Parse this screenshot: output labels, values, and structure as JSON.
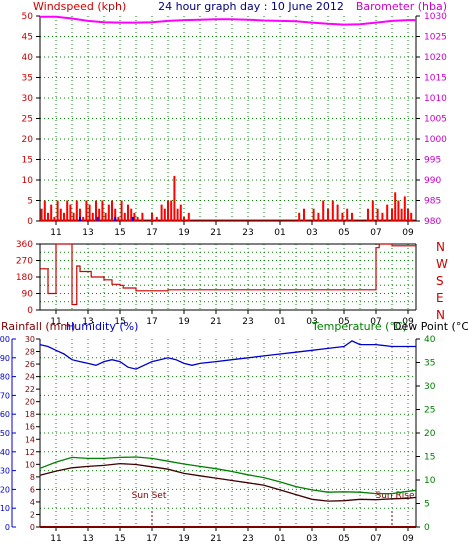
{
  "header": {
    "left_label": "Windspeed (kph)",
    "title": "24 hour graph day : 10 June 2012",
    "right_label": "Barometer (hba)"
  },
  "colors": {
    "wind": "#ff0000",
    "gust": "#0000ff",
    "barometer": "#ff00ff",
    "direction": "#cc0000",
    "humidity": "#0000cc",
    "temperature": "#008000",
    "dewpoint": "#400000",
    "rain": "#800000",
    "grid": "#008000",
    "axis_left": "#cc0000",
    "axis_right": "#cc00cc",
    "axis_blue": "#0000cc",
    "axis_green": "#008000"
  },
  "time_ticks": [
    "11",
    "13",
    "15",
    "17",
    "19",
    "21",
    "23",
    "01",
    "03",
    "05",
    "07",
    "09"
  ],
  "chart_data": [
    {
      "type": "bar",
      "name": "windspeed-barometer",
      "title": "24 hour graph day : 10 June 2012",
      "ylabel": "Windspeed (kph)",
      "ylabel_right": "Barometer (hba)",
      "ylim": [
        0,
        50
      ],
      "ylim_right": [
        980,
        1030
      ],
      "yticks": [
        0,
        5,
        10,
        15,
        20,
        25,
        30,
        35,
        40,
        45,
        50
      ],
      "yticks_right": [
        980,
        985,
        990,
        995,
        1000,
        1005,
        1010,
        1015,
        1020,
        1025,
        1030
      ],
      "xlim": [
        10,
        33.5
      ],
      "grid": true,
      "wind_bars": [
        [
          10.1,
          3
        ],
        [
          10.3,
          5
        ],
        [
          10.5,
          2
        ],
        [
          10.7,
          4
        ],
        [
          10.9,
          1
        ],
        [
          11.1,
          5
        ],
        [
          11.3,
          3
        ],
        [
          11.5,
          2
        ],
        [
          11.7,
          5
        ],
        [
          11.9,
          4
        ],
        [
          12.1,
          2
        ],
        [
          12.3,
          5
        ],
        [
          12.5,
          3
        ],
        [
          12.7,
          1
        ],
        [
          12.9,
          5
        ],
        [
          13.1,
          4
        ],
        [
          13.3,
          2
        ],
        [
          13.5,
          5
        ],
        [
          13.7,
          3
        ],
        [
          13.9,
          5
        ],
        [
          14.1,
          2
        ],
        [
          14.3,
          4
        ],
        [
          14.5,
          5
        ],
        [
          14.7,
          3
        ],
        [
          14.9,
          1
        ],
        [
          15.1,
          5
        ],
        [
          15.3,
          2
        ],
        [
          15.5,
          4
        ],
        [
          15.7,
          3
        ],
        [
          15.9,
          2
        ],
        [
          16.1,
          1
        ],
        [
          16.4,
          2
        ],
        [
          17.0,
          2
        ],
        [
          17.3,
          1
        ],
        [
          17.6,
          4
        ],
        [
          17.8,
          3
        ],
        [
          18.0,
          5
        ],
        [
          18.2,
          5
        ],
        [
          18.4,
          11
        ],
        [
          18.6,
          3
        ],
        [
          18.8,
          4
        ],
        [
          19.0,
          1
        ],
        [
          19.3,
          2
        ],
        [
          26.2,
          2
        ],
        [
          26.5,
          3
        ],
        [
          27.1,
          3
        ],
        [
          27.4,
          2
        ],
        [
          27.7,
          5
        ],
        [
          28.0,
          3
        ],
        [
          28.3,
          5
        ],
        [
          28.6,
          4
        ],
        [
          28.9,
          2
        ],
        [
          29.2,
          3
        ],
        [
          29.5,
          2
        ],
        [
          30.5,
          3
        ],
        [
          30.8,
          5
        ],
        [
          31.1,
          3
        ],
        [
          31.4,
          2
        ],
        [
          31.7,
          4
        ],
        [
          32.0,
          3
        ],
        [
          32.2,
          7
        ],
        [
          32.4,
          5
        ],
        [
          32.6,
          3
        ],
        [
          32.8,
          6
        ],
        [
          33.0,
          3
        ],
        [
          33.2,
          2
        ]
      ],
      "gust_bars": [
        [
          12.5,
          1
        ],
        [
          13.6,
          1
        ],
        [
          14.7,
          1
        ],
        [
          15.8,
          1
        ]
      ],
      "barometer": [
        [
          10,
          1029.8
        ],
        [
          11,
          1029.8
        ],
        [
          12,
          1029.4
        ],
        [
          13,
          1028.8
        ],
        [
          14,
          1028.5
        ],
        [
          15,
          1028.4
        ],
        [
          16,
          1028.4
        ],
        [
          17,
          1028.5
        ],
        [
          18,
          1028.8
        ],
        [
          19,
          1029.0
        ],
        [
          20,
          1029.1
        ],
        [
          21,
          1029.2
        ],
        [
          22,
          1029.2
        ],
        [
          23,
          1029.1
        ],
        [
          24,
          1028.9
        ],
        [
          25,
          1028.8
        ],
        [
          26,
          1028.7
        ],
        [
          27,
          1028.4
        ],
        [
          28,
          1028.1
        ],
        [
          29,
          1027.9
        ],
        [
          30,
          1028.0
        ],
        [
          31,
          1028.4
        ],
        [
          32,
          1028.8
        ],
        [
          33,
          1029.0
        ],
        [
          33.5,
          1029.0
        ]
      ]
    },
    {
      "type": "line",
      "name": "wind-direction",
      "ylim": [
        0,
        360
      ],
      "yticks": [
        0,
        90,
        180,
        270,
        360
      ],
      "compass": [
        "N",
        "W",
        "S",
        "E",
        "N"
      ],
      "xlim": [
        10,
        33.5
      ],
      "grid": true,
      "points": [
        [
          10,
          225
        ],
        [
          10.5,
          225
        ],
        [
          10.5,
          90
        ],
        [
          11.0,
          90
        ],
        [
          11.0,
          360
        ],
        [
          12.0,
          360
        ],
        [
          12.0,
          30
        ],
        [
          12.3,
          30
        ],
        [
          12.3,
          240
        ],
        [
          12.5,
          240
        ],
        [
          12.5,
          210
        ],
        [
          13.2,
          210
        ],
        [
          13.2,
          180
        ],
        [
          14.0,
          180
        ],
        [
          14.0,
          165
        ],
        [
          14.5,
          165
        ],
        [
          14.5,
          140
        ],
        [
          15.0,
          140
        ],
        [
          15.0,
          135
        ],
        [
          15.2,
          135
        ],
        [
          15.2,
          120
        ],
        [
          16.0,
          120
        ],
        [
          16.0,
          105
        ],
        [
          18.0,
          105
        ],
        [
          18.0,
          110
        ],
        [
          31.0,
          110
        ],
        [
          31.0,
          340
        ],
        [
          31.2,
          340
        ],
        [
          31.2,
          360
        ],
        [
          32.0,
          360
        ],
        [
          32.0,
          350
        ],
        [
          33.5,
          350
        ]
      ]
    },
    {
      "type": "line",
      "name": "temp-humidity-rain",
      "ylabel": "Rainfall (mm)",
      "ylabel2": "Humidity (%)",
      "ylabel_right": "Temperature (°C)",
      "ylabel_right2": "Dew Point (°C)",
      "ylim": [
        0,
        100
      ],
      "ylim_rain": [
        0,
        30
      ],
      "ylim_right": [
        0,
        40
      ],
      "yticks": [
        0,
        10,
        20,
        30,
        40,
        50,
        60,
        70,
        80,
        90,
        100
      ],
      "yticks_rain": [
        0,
        2,
        4,
        6,
        8,
        10,
        12,
        14,
        16,
        18,
        20,
        22,
        24,
        26,
        28,
        30
      ],
      "yticks_right": [
        0,
        5,
        10,
        15,
        20,
        25,
        30,
        35,
        40
      ],
      "xlim": [
        10,
        33.5
      ],
      "grid": true,
      "sunset": {
        "label": "Sun Set",
        "x": 17.0
      },
      "sunrise": {
        "label": "Sun Rise",
        "x": 32.0
      },
      "humidity": [
        [
          10,
          97
        ],
        [
          10.5,
          96
        ],
        [
          11,
          94
        ],
        [
          11.5,
          92
        ],
        [
          12,
          89
        ],
        [
          12.5,
          88
        ],
        [
          13,
          87
        ],
        [
          13.5,
          86
        ],
        [
          14,
          88
        ],
        [
          14.5,
          89
        ],
        [
          15,
          88
        ],
        [
          15.5,
          85
        ],
        [
          16,
          84
        ],
        [
          16.5,
          86
        ],
        [
          17,
          88
        ],
        [
          17.5,
          89
        ],
        [
          18,
          90
        ],
        [
          18.5,
          89
        ],
        [
          19,
          87
        ],
        [
          19.5,
          86
        ],
        [
          20,
          87
        ],
        [
          21,
          88
        ],
        [
          22,
          89
        ],
        [
          23,
          90
        ],
        [
          24,
          91
        ],
        [
          25,
          92
        ],
        [
          26,
          93
        ],
        [
          27,
          94
        ],
        [
          28,
          95
        ],
        [
          29,
          96
        ],
        [
          29.5,
          99
        ],
        [
          30,
          97
        ],
        [
          31,
          97
        ],
        [
          32,
          96
        ],
        [
          33,
          96
        ],
        [
          33.5,
          96
        ]
      ],
      "temperature": [
        [
          10,
          12.5
        ],
        [
          11,
          13.8
        ],
        [
          12,
          14.8
        ],
        [
          13,
          14.6
        ],
        [
          14,
          14.6
        ],
        [
          15,
          14.8
        ],
        [
          16,
          14.9
        ],
        [
          17,
          14.6
        ],
        [
          18,
          14.0
        ],
        [
          19,
          13.4
        ],
        [
          20,
          12.9
        ],
        [
          21,
          12.4
        ],
        [
          22,
          11.8
        ],
        [
          23,
          11.1
        ],
        [
          24,
          10.5
        ],
        [
          25,
          9.6
        ],
        [
          26,
          8.6
        ],
        [
          27,
          7.9
        ],
        [
          28,
          7.4
        ],
        [
          29,
          7.5
        ],
        [
          30,
          7.4
        ],
        [
          31,
          7.1
        ],
        [
          32,
          7.1
        ],
        [
          33,
          7.6
        ],
        [
          33.5,
          7.8
        ]
      ],
      "dewpoint": [
        [
          10,
          11.0
        ],
        [
          11,
          11.9
        ],
        [
          12,
          12.6
        ],
        [
          13,
          12.9
        ],
        [
          14,
          13.1
        ],
        [
          15,
          13.5
        ],
        [
          16,
          13.3
        ],
        [
          17,
          12.8
        ],
        [
          18,
          12.3
        ],
        [
          19,
          11.4
        ],
        [
          20,
          10.9
        ],
        [
          21,
          10.4
        ],
        [
          22,
          9.9
        ],
        [
          23,
          9.4
        ],
        [
          24,
          8.9
        ],
        [
          25,
          7.9
        ],
        [
          26,
          6.9
        ],
        [
          27,
          5.9
        ],
        [
          28,
          5.5
        ],
        [
          29,
          5.6
        ],
        [
          30,
          5.9
        ],
        [
          31,
          5.8
        ],
        [
          32,
          6.0
        ],
        [
          33,
          6.1
        ],
        [
          33.5,
          6.3
        ]
      ],
      "rain": [
        [
          10,
          0
        ],
        [
          33.5,
          0
        ]
      ]
    }
  ]
}
